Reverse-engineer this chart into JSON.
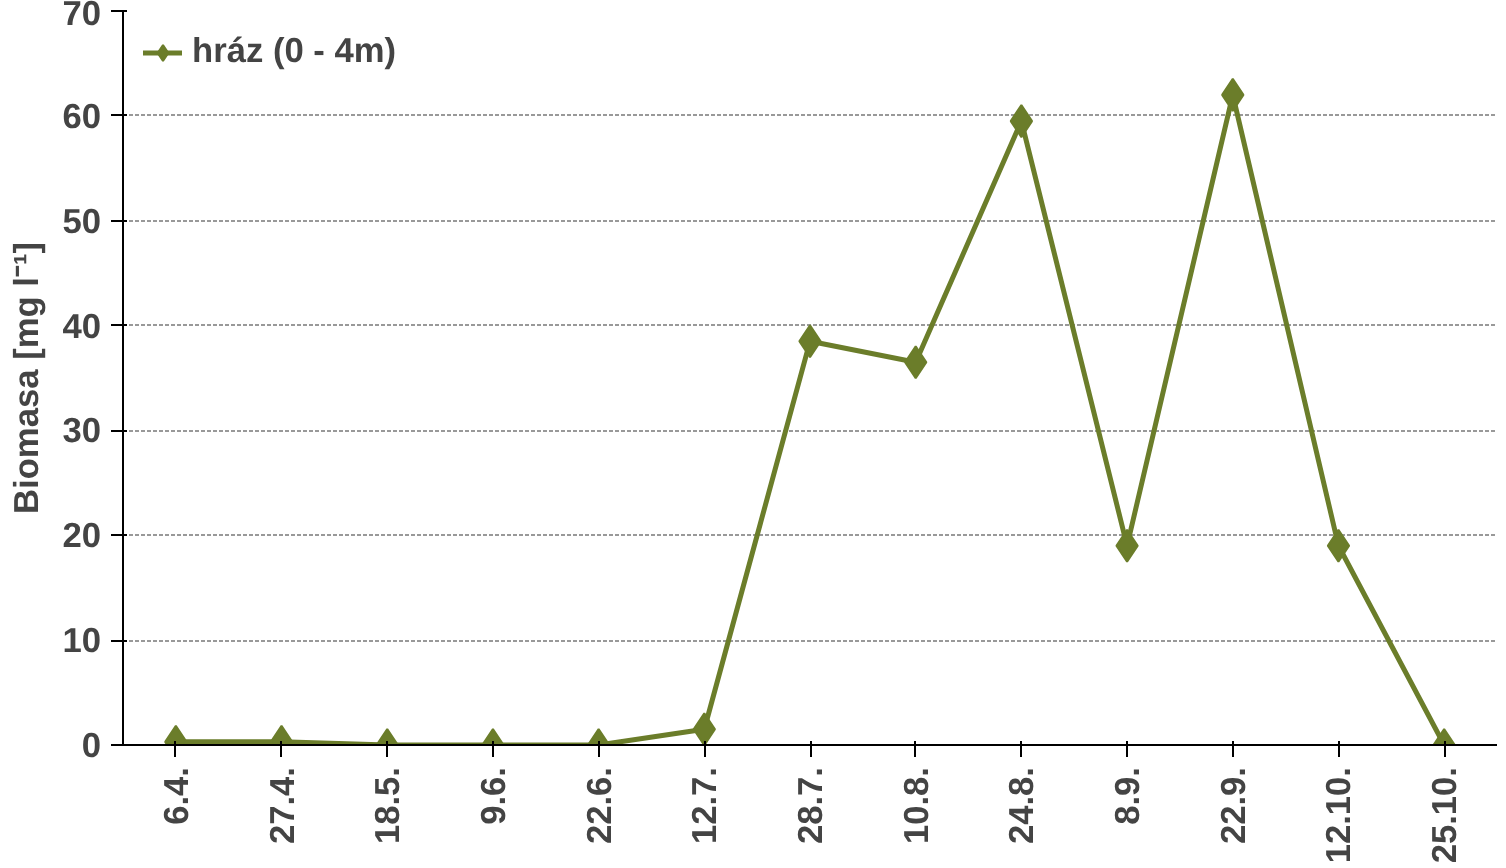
{
  "chart_data": {
    "type": "line",
    "ylabel": "Biomasa [mg l⁻¹]",
    "categories": [
      "6.4.",
      "27.4.",
      "18.5.",
      "9.6.",
      "22.6.",
      "12.7.",
      "28.7.",
      "10.8.",
      "24.8.",
      "8.9.",
      "22.9.",
      "12.10.",
      "25.10."
    ],
    "series": [
      {
        "name": "hráz (0 - 4m)",
        "color": "#6b7d2a",
        "values": [
          0.3,
          0.3,
          0,
          0,
          0,
          1.5,
          38.5,
          36.5,
          59.5,
          19,
          62,
          19,
          0
        ]
      }
    ],
    "ylim": [
      0,
      70
    ],
    "yticks": [
      0,
      10,
      20,
      30,
      40,
      50,
      60,
      70
    ],
    "grid": "y",
    "legend": "top left",
    "marker": "diamond",
    "line_style": "solid"
  }
}
